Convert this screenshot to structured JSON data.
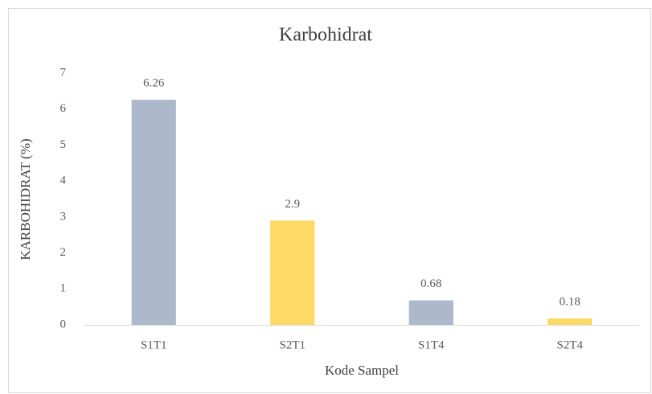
{
  "chart_data": {
    "type": "bar",
    "title": "Karbohidrat",
    "x_label": "Kode Sampel",
    "y_label": "KARBOHIDRAT (%)",
    "categories": [
      "S1T1",
      "S2T1",
      "S1T4",
      "S2T4"
    ],
    "values": [
      6.26,
      2.9,
      0.68,
      0.18
    ],
    "colors": [
      "#adb9ca",
      "#ffd966",
      "#adb9ca",
      "#ffd966"
    ],
    "ylim": [
      0,
      7
    ],
    "yticks": [
      0,
      1,
      2,
      3,
      4,
      5,
      6,
      7
    ],
    "grid": false
  }
}
